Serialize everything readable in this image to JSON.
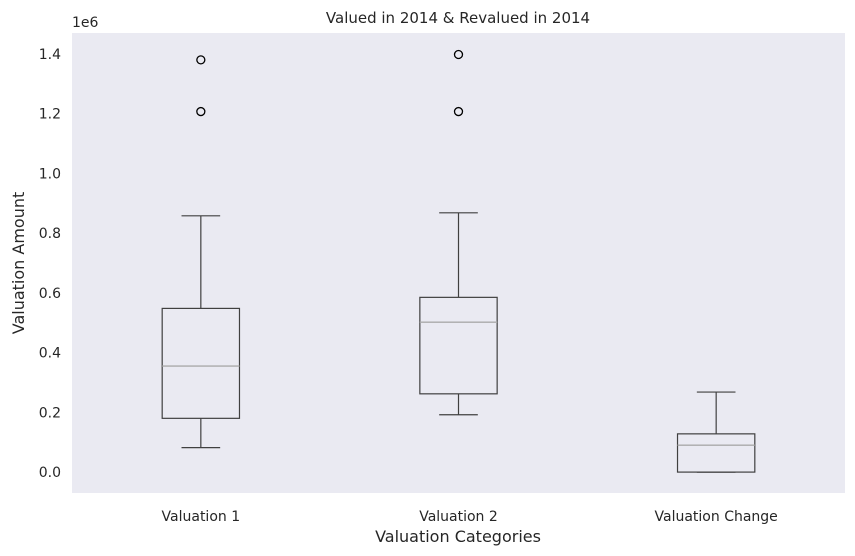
{
  "chart_data": {
    "type": "box",
    "title": "Valued in 2014 & Revalued in 2014",
    "xlabel": "Valuation Categories",
    "ylabel": "Valuation Amount",
    "y_offset_label": "1e6",
    "ylim": [
      -0.07,
      1.47
    ],
    "y_ticks": [
      0.0,
      0.2,
      0.4,
      0.6,
      0.8,
      1.0,
      1.2,
      1.4
    ],
    "y_tick_labels": [
      "0.0",
      "0.2",
      "0.4",
      "0.6",
      "0.8",
      "1.0",
      "1.2",
      "1.4"
    ],
    "grid": false,
    "background": "#eaeaf2",
    "box_color": "#404040",
    "median_color": "#aaaaaa",
    "categories": [
      "Valuation 1",
      "Valuation 2",
      "Valuation Change"
    ],
    "boxes": [
      {
        "label": "Valuation 1",
        "whisker_low": 0.082,
        "q1": 0.18,
        "median": 0.355,
        "q3": 0.548,
        "whisker_high": 0.858,
        "outliers": [
          1.207,
          1.38
        ]
      },
      {
        "label": "Valuation 2",
        "whisker_low": 0.192,
        "q1": 0.262,
        "median": 0.502,
        "q3": 0.585,
        "whisker_high": 0.868,
        "outliers": [
          1.207,
          1.398
        ]
      },
      {
        "label": "Valuation Change",
        "whisker_low": 0.0,
        "q1": 0.0,
        "median": 0.09,
        "q3": 0.128,
        "whisker_high": 0.268,
        "outliers": []
      }
    ]
  }
}
